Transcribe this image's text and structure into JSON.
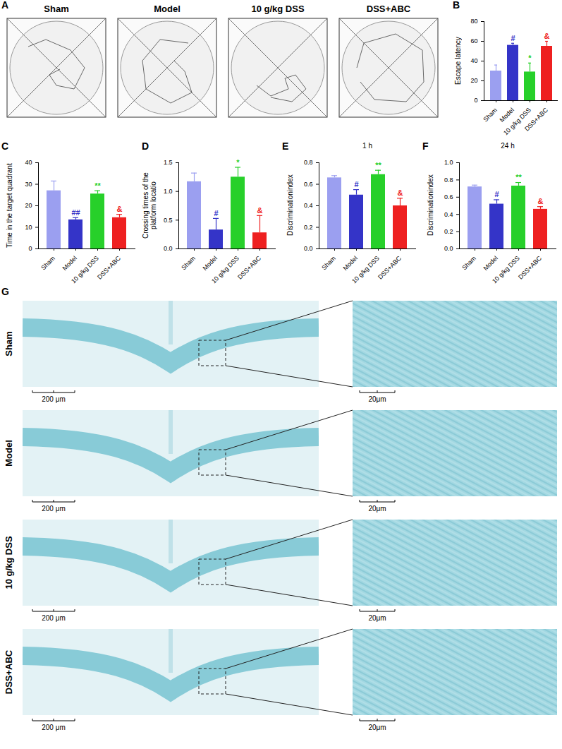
{
  "chart_data": [
    {
      "panel": "B",
      "type": "bar",
      "y_label": "Escape latency",
      "categories": [
        "Sham",
        "Model",
        "10 g/kg DSS",
        "DSS+ABC"
      ],
      "values": [
        30,
        56,
        29,
        55
      ],
      "errors": [
        6,
        2,
        9,
        5
      ],
      "colors": [
        "#9b9ff0",
        "#3434c8",
        "#27d02a",
        "#ee2020"
      ],
      "annotations": [
        null,
        "#",
        "*",
        "&"
      ],
      "ylim": [
        0,
        80
      ],
      "yticks": [
        0,
        20,
        40,
        60,
        80
      ]
    },
    {
      "panel": "C",
      "type": "bar",
      "y_label": "Time in the target quadrant",
      "categories": [
        "Sham",
        "Model",
        "10 g/kg DSS",
        "DSS+ABC"
      ],
      "values": [
        27,
        13.5,
        25.5,
        14.5
      ],
      "errors": [
        4.5,
        1,
        1.5,
        1.5
      ],
      "colors": [
        "#9b9ff0",
        "#3434c8",
        "#27d02a",
        "#ee2020"
      ],
      "annotations": [
        null,
        "##",
        "**",
        "&"
      ],
      "ylim": [
        0,
        40
      ],
      "yticks": [
        0,
        10,
        20,
        30,
        40
      ]
    },
    {
      "panel": "D",
      "type": "bar",
      "y_label": "Crossing times of the platform locatio",
      "categories": [
        "Sham",
        "Model",
        "10 g/kg DSS",
        "DSS+ABC"
      ],
      "values": [
        1.17,
        0.33,
        1.25,
        0.28
      ],
      "errors": [
        0.15,
        0.2,
        0.17,
        0.3
      ],
      "colors": [
        "#9b9ff0",
        "#3434c8",
        "#27d02a",
        "#ee2020"
      ],
      "annotations": [
        null,
        "#",
        "*",
        "&"
      ],
      "ylim": [
        0,
        1.5
      ],
      "yticks": [
        {
          "value": 0,
          "label": "0.0"
        },
        0.5,
        {
          "value": 1,
          "label": "1.0"
        },
        1.5
      ]
    },
    {
      "panel": "E",
      "type": "bar",
      "title": "1 h",
      "y_label": "Discriminationindex",
      "categories": [
        "Sham",
        "Model",
        "10 g/kg DSS",
        "DSS+ABC"
      ],
      "values": [
        0.66,
        0.5,
        0.69,
        0.4
      ],
      "errors": [
        0.02,
        0.05,
        0.04,
        0.07
      ],
      "colors": [
        "#9b9ff0",
        "#3434c8",
        "#27d02a",
        "#ee2020"
      ],
      "annotations": [
        null,
        "#",
        "**",
        "&"
      ],
      "ylim": [
        0,
        0.8
      ],
      "yticks": [
        {
          "value": 0,
          "label": "0.0"
        },
        0.2,
        0.4,
        0.6,
        0.8
      ]
    },
    {
      "panel": "F",
      "type": "bar",
      "title": "24 h",
      "y_label": "Discriminationindex",
      "categories": [
        "Sham",
        "Model",
        "10 g/kg DSS",
        "DSS+ABC"
      ],
      "values": [
        0.72,
        0.52,
        0.73,
        0.46
      ],
      "errors": [
        0.02,
        0.05,
        0.04,
        0.03
      ],
      "colors": [
        "#9b9ff0",
        "#3434c8",
        "#27d02a",
        "#ee2020"
      ],
      "annotations": [
        null,
        "#",
        "**",
        "&"
      ],
      "ylim": [
        0,
        1
      ],
      "yticks": [
        {
          "value": 0,
          "label": "0.0"
        },
        0.2,
        0.4,
        0.6,
        0.8,
        {
          "value": 1,
          "label": "1.0"
        }
      ]
    }
  ],
  "panel_a": {
    "panel": "A",
    "groups": [
      "Sham",
      "Model",
      "10 g/kg DSS",
      "DSS+ABC"
    ]
  },
  "panel_g": {
    "panel": "G",
    "rows": [
      "Sham",
      "Model",
      "10 g/kg DSS",
      "DSS+ABC"
    ],
    "scale_left": "200 μm",
    "scale_right": "20μm"
  }
}
